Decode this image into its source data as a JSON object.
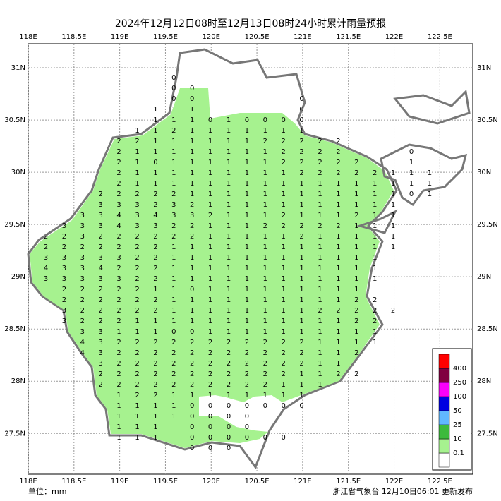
{
  "chart_data": {
    "type": "map",
    "title": "2024年12月12日08时至12月13日08时24小时累计雨量预报",
    "unit": "单位：mm",
    "source": "浙江省气象台 12月10日06:01 更新发布",
    "xlim": [
      118,
      122.86
    ],
    "ylim": [
      27.11,
      31.23
    ],
    "xticks": [
      {
        "value": 118,
        "label": "118E"
      },
      {
        "value": 118.5,
        "label": "118.5E"
      },
      {
        "value": 119,
        "label": "119E"
      },
      {
        "value": 119.5,
        "label": "119.5E"
      },
      {
        "value": 120,
        "label": "120E"
      },
      {
        "value": 120.5,
        "label": "120.5E"
      },
      {
        "value": 121,
        "label": "121E"
      },
      {
        "value": 121.5,
        "label": "121.5E"
      },
      {
        "value": 122,
        "label": "122E"
      },
      {
        "value": 122.5,
        "label": "122.5E"
      }
    ],
    "yticks": [
      {
        "value": 31,
        "label": "31N"
      },
      {
        "value": 30.5,
        "label": "30.5N"
      },
      {
        "value": 30,
        "label": "30N"
      },
      {
        "value": 29.5,
        "label": "29.5N"
      },
      {
        "value": 29,
        "label": "29N"
      },
      {
        "value": 28.5,
        "label": "28.5N"
      },
      {
        "value": 28,
        "label": "28N"
      },
      {
        "value": 27.5,
        "label": "27.5N"
      }
    ],
    "grid": true,
    "legend": {
      "levels": [
        0.1,
        10,
        25,
        50,
        100,
        250,
        400
      ],
      "colors": [
        "#ffffff",
        "#a6f28f",
        "#3dba3d",
        "#61b8ff",
        "#0000e1",
        "#fa00fa",
        "#800040",
        "#ff0000"
      ]
    },
    "rainfall_grid": [
      [
        null,
        null,
        null,
        null,
        null,
        null,
        null,
        0
      ],
      [
        null,
        null,
        null,
        null,
        null,
        null,
        null,
        0,
        0
      ],
      [
        null,
        null,
        null,
        null,
        null,
        null,
        null,
        0,
        0,
        null,
        null,
        null,
        null,
        null,
        0
      ],
      [
        null,
        null,
        null,
        null,
        null,
        null,
        1,
        1,
        1,
        null,
        null,
        null,
        null,
        null,
        0
      ],
      [
        null,
        null,
        null,
        null,
        null,
        null,
        1,
        1,
        1,
        0,
        1,
        0,
        0,
        0,
        0
      ],
      [
        null,
        null,
        null,
        null,
        null,
        1,
        1,
        2,
        1,
        1,
        1,
        1,
        1,
        1,
        1
      ],
      [
        null,
        null,
        null,
        null,
        2,
        2,
        1,
        1,
        1,
        1,
        1,
        1,
        2,
        2,
        2,
        2,
        2
      ],
      [
        null,
        null,
        null,
        null,
        2,
        1,
        1,
        1,
        1,
        1,
        1,
        1,
        1,
        2,
        2,
        2,
        2,
        null,
        null,
        null,
        0
      ],
      [
        null,
        null,
        null,
        null,
        2,
        1,
        0,
        1,
        1,
        1,
        1,
        1,
        1,
        2,
        2,
        2,
        2,
        2,
        null,
        null,
        1
      ],
      [
        null,
        null,
        null,
        null,
        2,
        1,
        1,
        1,
        1,
        1,
        1,
        1,
        1,
        1,
        2,
        2,
        2,
        2,
        2,
        1,
        1,
        1
      ],
      [
        null,
        null,
        null,
        null,
        2,
        1,
        1,
        1,
        1,
        1,
        1,
        1,
        1,
        1,
        1,
        1,
        1,
        1,
        1,
        1,
        1,
        1
      ],
      [
        null,
        null,
        null,
        2,
        2,
        2,
        2,
        2,
        1,
        1,
        1,
        1,
        1,
        1,
        1,
        1,
        1,
        1,
        1,
        1,
        0,
        1
      ],
      [
        null,
        null,
        null,
        3,
        3,
        3,
        2,
        3,
        2,
        1,
        1,
        1,
        1,
        1,
        1,
        1,
        1,
        1,
        1,
        1
      ],
      [
        null,
        null,
        3,
        3,
        4,
        3,
        4,
        3,
        3,
        2,
        1,
        1,
        1,
        2,
        1,
        1,
        1,
        2,
        1,
        1
      ],
      [
        null,
        3,
        3,
        3,
        4,
        3,
        3,
        2,
        2,
        1,
        1,
        1,
        2,
        2,
        2,
        2,
        2,
        1,
        1,
        1
      ],
      [
        2,
        2,
        3,
        2,
        2,
        2,
        2,
        2,
        2,
        1,
        1,
        1,
        1,
        1,
        2,
        1,
        1,
        1,
        1,
        1
      ],
      [
        2,
        2,
        2,
        2,
        2,
        2,
        2,
        1,
        1,
        1,
        1,
        1,
        1,
        1,
        1,
        1,
        1,
        1,
        1,
        1
      ],
      [
        3,
        3,
        3,
        3,
        3,
        2,
        2,
        1,
        1,
        1,
        1,
        1,
        1,
        1,
        1,
        1,
        1,
        1,
        1
      ],
      [
        4,
        3,
        3,
        4,
        2,
        2,
        2,
        1,
        1,
        1,
        1,
        1,
        1,
        1,
        1,
        1,
        1,
        1,
        1
      ],
      [
        3,
        3,
        3,
        3,
        3,
        2,
        2,
        1,
        1,
        1,
        1,
        1,
        1,
        1,
        1,
        1,
        1,
        1,
        1
      ],
      [
        null,
        2,
        2,
        2,
        2,
        2,
        1,
        1,
        0,
        1,
        1,
        1,
        1,
        1,
        1,
        1,
        1,
        1
      ],
      [
        null,
        2,
        2,
        2,
        2,
        2,
        2,
        1,
        1,
        1,
        1,
        1,
        1,
        1,
        1,
        1,
        1,
        2,
        2
      ],
      [
        null,
        3,
        2,
        2,
        2,
        2,
        2,
        1,
        1,
        1,
        1,
        1,
        1,
        1,
        1,
        2,
        2,
        2,
        2,
        2
      ],
      [
        null,
        3,
        2,
        2,
        2,
        1,
        1,
        1,
        1,
        1,
        1,
        1,
        1,
        1,
        1,
        1,
        1,
        2,
        2
      ],
      [
        null,
        null,
        3,
        3,
        1,
        1,
        1,
        0,
        0,
        1,
        1,
        1,
        1,
        1,
        1,
        1,
        1,
        1,
        1
      ],
      [
        null,
        null,
        4,
        3,
        2,
        2,
        2,
        2,
        2,
        2,
        2,
        2,
        2,
        2,
        2,
        1,
        1,
        1,
        1
      ],
      [
        null,
        null,
        4,
        3,
        2,
        2,
        2,
        2,
        2,
        2,
        2,
        2,
        2,
        2,
        2,
        1,
        1,
        2
      ],
      [
        null,
        null,
        null,
        3,
        2,
        2,
        2,
        2,
        2,
        2,
        2,
        2,
        2,
        2,
        2,
        1,
        1
      ],
      [
        null,
        null,
        null,
        2,
        2,
        2,
        2,
        2,
        2,
        2,
        2,
        2,
        2,
        2,
        1,
        1,
        2,
        2
      ],
      [
        null,
        null,
        null,
        2,
        2,
        2,
        2,
        2,
        2,
        2,
        2,
        2,
        2,
        1,
        1,
        1
      ],
      [
        null,
        null,
        null,
        null,
        1,
        2,
        2,
        1,
        1,
        1,
        1,
        1,
        1,
        1,
        1
      ],
      [
        null,
        null,
        null,
        null,
        1,
        1,
        1,
        1,
        0,
        0,
        0,
        0,
        0,
        0,
        0
      ],
      [
        null,
        null,
        null,
        null,
        1,
        1,
        1,
        1,
        0,
        0,
        0,
        0
      ],
      [
        null,
        null,
        null,
        null,
        1,
        1,
        1,
        null,
        0,
        0,
        0,
        0
      ],
      [
        null,
        null,
        null,
        null,
        1,
        1,
        1,
        null,
        0,
        0,
        0,
        0,
        0,
        0
      ],
      [
        null,
        null,
        null,
        null,
        null,
        null,
        null,
        null,
        0,
        0,
        0
      ]
    ]
  }
}
